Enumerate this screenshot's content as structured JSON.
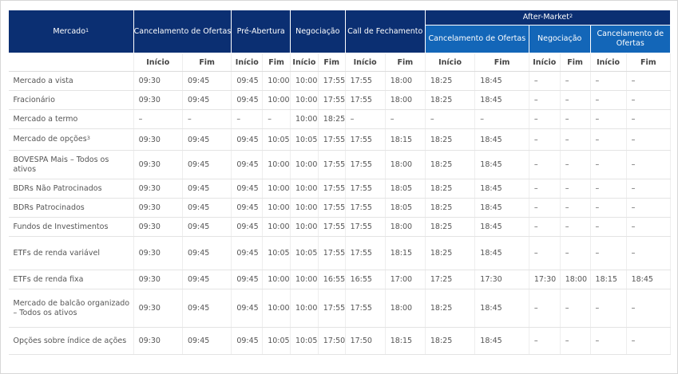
{
  "header": {
    "mercado": "Mercado",
    "mercado_sup": "1",
    "cancelamento": "Cancelamento de Ofertas",
    "pre_abertura": "Pré-Abertura",
    "negociacao": "Negociação",
    "call": "Call de Fechamento",
    "after_market": "After-Market",
    "after_sup": "2",
    "after_cancelamento": "Cancelamento de Ofertas",
    "after_negociacao": "Negociação",
    "after_cancelamento2": "Cancelamento de Ofertas"
  },
  "subheader": [
    "Início",
    "Fim",
    "Início",
    "Fim",
    "Início",
    "Fim",
    "Início",
    "Fim",
    "Início",
    "Fim",
    "Início",
    "Fim",
    "Início",
    "Fim"
  ],
  "rows": [
    {
      "name": "Mercado a vista",
      "sup": "",
      "values": [
        "09:30",
        "09:45",
        "09:45",
        "10:00",
        "10:00",
        "17:55",
        "17:55",
        "18:00",
        "18:25",
        "18:45",
        "–",
        "–",
        "–",
        "–"
      ]
    },
    {
      "name": "Fracionário",
      "sup": "",
      "values": [
        "09:30",
        "09:45",
        "09:45",
        "10:00",
        "10:00",
        "17:55",
        "17:55",
        "18:00",
        "18:25",
        "18:45",
        "–",
        "–",
        "–",
        "–"
      ]
    },
    {
      "name": "Mercado a termo",
      "sup": "",
      "values": [
        "–",
        "–",
        "–",
        "–",
        "10:00",
        "18:25",
        "–",
        "–",
        "–",
        "–",
        "–",
        "–",
        "–",
        "–"
      ]
    },
    {
      "name": "Mercado de opções",
      "sup": "3",
      "values": [
        "09:30",
        "09:45",
        "09:45",
        "10:05",
        "10:05",
        "17:55",
        "17:55",
        "18:15",
        "18:25",
        "18:45",
        "–",
        "–",
        "–",
        "–"
      ]
    },
    {
      "name": "BOVESPA Mais – Todos os ativos",
      "sup": "",
      "values": [
        "09:30",
        "09:45",
        "09:45",
        "10:00",
        "10:00",
        "17:55",
        "17:55",
        "18:00",
        "18:25",
        "18:45",
        "–",
        "–",
        "–",
        "–"
      ]
    },
    {
      "name": "BDRs Não Patrocinados",
      "sup": "",
      "values": [
        "09:30",
        "09:45",
        "09:45",
        "10:00",
        "10:00",
        "17:55",
        "17:55",
        "18:05",
        "18:25",
        "18:45",
        "–",
        "–",
        "–",
        "–"
      ]
    },
    {
      "name": "BDRs Patrocinados",
      "sup": "",
      "values": [
        "09:30",
        "09:45",
        "09:45",
        "10:00",
        "10:00",
        "17:55",
        "17:55",
        "18:05",
        "18:25",
        "18:45",
        "–",
        "–",
        "–",
        "–"
      ]
    },
    {
      "name": "Fundos de Investimentos",
      "sup": "",
      "values": [
        "09:30",
        "09:45",
        "09:45",
        "10:00",
        "10:00",
        "17:55",
        "17:55",
        "18:00",
        "18:25",
        "18:45",
        "–",
        "–",
        "–",
        "–"
      ]
    },
    {
      "name": "ETFs de renda variável",
      "sup": "",
      "values": [
        "09:30",
        "09:45",
        "09:45",
        "10:05",
        "10:05",
        "17:55",
        "17:55",
        "18:15",
        "18:25",
        "18:45",
        "–",
        "–",
        "–",
        "–"
      ]
    },
    {
      "name": "ETFs de renda fixa",
      "sup": "",
      "values": [
        "09:30",
        "09:45",
        "09:45",
        "10:00",
        "10:00",
        "16:55",
        "16:55",
        "17:00",
        "17:25",
        "17:30",
        "17:30",
        "18:00",
        "18:15",
        "18:45"
      ]
    },
    {
      "name": "Mercado de balcão organizado – Todos os ativos",
      "sup": "",
      "values": [
        "09:30",
        "09:45",
        "09:45",
        "10:00",
        "10:00",
        "17:55",
        "17:55",
        "18:00",
        "18:25",
        "18:45",
        "–",
        "–",
        "–",
        "–"
      ]
    },
    {
      "name": "Opções sobre índice de ações",
      "sup": "",
      "values": [
        "09:30",
        "09:45",
        "09:45",
        "10:05",
        "10:05",
        "17:50",
        "17:50",
        "18:15",
        "18:25",
        "18:45",
        "–",
        "–",
        "–",
        "–"
      ]
    }
  ]
}
